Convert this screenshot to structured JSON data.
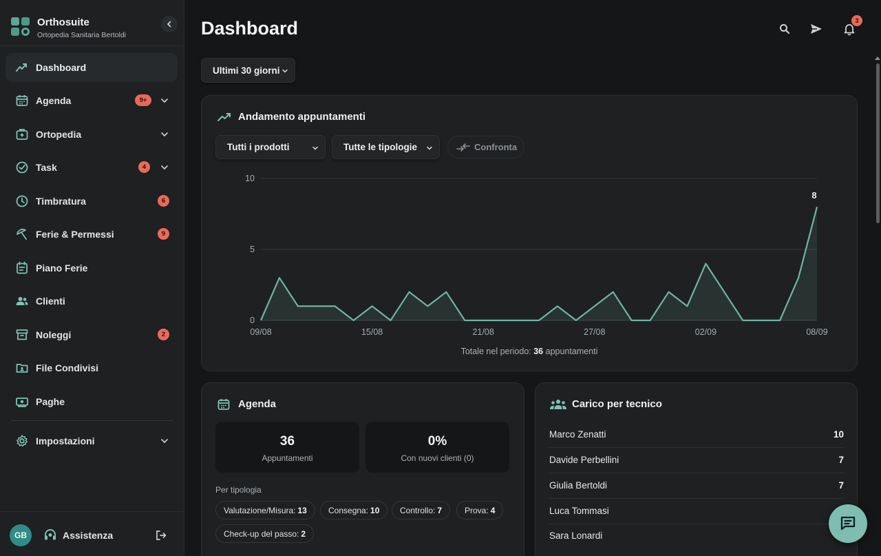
{
  "app": {
    "name": "Orthosuite",
    "subtitle": "Ortopedia Sanitaria Bertoldi"
  },
  "sidebar": {
    "items": [
      {
        "label": "Dashboard",
        "icon": "trending-up-icon",
        "badge": "",
        "expandable": false
      },
      {
        "label": "Agenda",
        "icon": "calendar-icon",
        "badge": "9+",
        "expandable": true
      },
      {
        "label": "Ortopedia",
        "icon": "medical-kit-icon",
        "badge": "",
        "expandable": true
      },
      {
        "label": "Task",
        "icon": "check-circle-icon",
        "badge": "4",
        "expandable": true
      },
      {
        "label": "Timbratura",
        "icon": "clock-icon",
        "badge": "6",
        "expandable": false
      },
      {
        "label": "Ferie & Permessi",
        "icon": "beach-umbrella-icon",
        "badge": "9",
        "expandable": false
      },
      {
        "label": "Piano Ferie",
        "icon": "calendar-list-icon",
        "badge": "",
        "expandable": false
      },
      {
        "label": "Clienti",
        "icon": "users-icon",
        "badge": "",
        "expandable": false
      },
      {
        "label": "Noleggi",
        "icon": "archive-box-icon",
        "badge": "2",
        "expandable": false
      },
      {
        "label": "File Condivisi",
        "icon": "folder-shared-icon",
        "badge": "",
        "expandable": false
      },
      {
        "label": "Paghe",
        "icon": "banknote-icon",
        "badge": "",
        "expandable": false
      },
      {
        "label": "Impostazioni",
        "icon": "gear-icon",
        "badge": "",
        "expandable": true
      }
    ],
    "footer": {
      "avatar_initials": "GB",
      "assist_label": "Assistenza"
    }
  },
  "header": {
    "title": "Dashboard",
    "notifications_count": "3"
  },
  "period_select": {
    "value": "Ultimi 30 giorni"
  },
  "trend_card": {
    "title": "Andamento appuntamenti",
    "product_filter": "Tutti i prodotti",
    "type_filter": "Tutte le tipologie",
    "compare_label": "Confronta",
    "total_prefix": "Totale nel periodo:",
    "total_value": "36",
    "total_suffix": "appuntamenti"
  },
  "chart_data": {
    "type": "area",
    "x": [
      "09/08",
      "10/08",
      "11/08",
      "12/08",
      "13/08",
      "14/08",
      "15/08",
      "16/08",
      "17/08",
      "18/08",
      "19/08",
      "20/08",
      "21/08",
      "22/08",
      "23/08",
      "24/08",
      "25/08",
      "26/08",
      "27/08",
      "28/08",
      "29/08",
      "30/08",
      "31/08",
      "01/09",
      "02/09",
      "03/09",
      "04/09",
      "05/09",
      "06/09",
      "07/09",
      "08/09"
    ],
    "values": [
      0,
      3,
      1,
      1,
      1,
      0,
      1,
      0,
      2,
      1,
      2,
      0,
      0,
      0,
      0,
      0,
      1,
      0,
      1,
      2,
      0,
      0,
      2,
      1,
      4,
      2,
      0,
      0,
      0,
      3,
      8
    ],
    "x_tick_labels": [
      "09/08",
      "15/08",
      "21/08",
      "27/08",
      "02/09",
      "08/09"
    ],
    "y_ticks": [
      "0",
      "5",
      "10"
    ],
    "ylim": [
      0,
      10
    ],
    "last_value_label": "8",
    "grid": true,
    "color": "#6fb5a5"
  },
  "agenda_card": {
    "title": "Agenda",
    "stats": [
      {
        "value": "36",
        "label": "Appuntamenti"
      },
      {
        "value": "0%",
        "label": "Con nuovi clienti (0)"
      }
    ],
    "by_type_label": "Per tipologia",
    "types": [
      {
        "label": "Valutazione/Misura:",
        "count": "13"
      },
      {
        "label": "Consegna:",
        "count": "10"
      },
      {
        "label": "Controllo:",
        "count": "7"
      },
      {
        "label": "Prova:",
        "count": "4"
      },
      {
        "label": "Check-up del passo:",
        "count": "2"
      }
    ]
  },
  "tech_card": {
    "title": "Carico per tecnico",
    "rows": [
      {
        "name": "Marco Zenatti",
        "value": "10"
      },
      {
        "name": "Davide Perbellini",
        "value": "7"
      },
      {
        "name": "Giulia Bertoldi",
        "value": "7"
      },
      {
        "name": "Luca Tommasi",
        "value": ""
      },
      {
        "name": "Sara Lonardi",
        "value": ""
      }
    ]
  },
  "colors": {
    "accent": "#6fb5a5",
    "badge": "#ea6a5a",
    "background": "#151617",
    "surface": "#1e2022"
  }
}
